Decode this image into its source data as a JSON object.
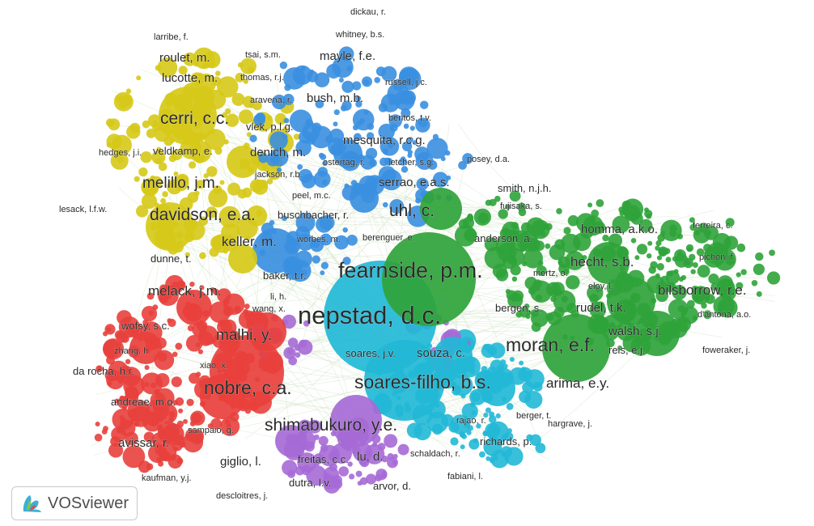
{
  "app": {
    "brand": "VOSviewer",
    "logo_icon": "vosviewer-logo-icon"
  },
  "network": {
    "visualization": "co-authorship network",
    "clusters": [
      {
        "id": "yellow",
        "color": "#d6c918"
      },
      {
        "id": "blue",
        "color": "#3a8fe0"
      },
      {
        "id": "green",
        "color": "#2fa33a"
      },
      {
        "id": "red",
        "color": "#e8403c"
      },
      {
        "id": "cyan",
        "color": "#22b8d6"
      },
      {
        "id": "purple",
        "color": "#a66ad6"
      }
    ],
    "link_color": "#cfe3c4",
    "labels": [
      {
        "text": "dickau, r.",
        "cluster": "blue"
      },
      {
        "text": "whitney, b.s.",
        "cluster": "blue"
      },
      {
        "text": "larribe, f.",
        "cluster": "yellow"
      },
      {
        "text": "roulet, m.",
        "cluster": "yellow"
      },
      {
        "text": "tsai, s.m.",
        "cluster": "yellow"
      },
      {
        "text": "mayle, f.e.",
        "cluster": "blue"
      },
      {
        "text": "lucotte, m.",
        "cluster": "yellow"
      },
      {
        "text": "thomas, r.j.",
        "cluster": "yellow"
      },
      {
        "text": "russell, j.c.",
        "cluster": "blue"
      },
      {
        "text": "bush, m.b.",
        "cluster": "blue"
      },
      {
        "text": "aravena, r.",
        "cluster": "yellow"
      },
      {
        "text": "cerri, c.c.",
        "cluster": "yellow"
      },
      {
        "text": "bentos, t.v.",
        "cluster": "blue"
      },
      {
        "text": "vlek, p.l.g.",
        "cluster": "yellow"
      },
      {
        "text": "mesquita, r.c.g.",
        "cluster": "blue"
      },
      {
        "text": "hedges, j.i.",
        "cluster": "yellow"
      },
      {
        "text": "veldkamp, e.",
        "cluster": "yellow"
      },
      {
        "text": "denich, m.",
        "cluster": "yellow"
      },
      {
        "text": "ostertag, r.",
        "cluster": "blue"
      },
      {
        "text": "letcher, s.g.",
        "cluster": "blue"
      },
      {
        "text": "posey, d.a.",
        "cluster": "blue"
      },
      {
        "text": "jackson, r.b.",
        "cluster": "yellow"
      },
      {
        "text": "melillo, j.m.",
        "cluster": "yellow"
      },
      {
        "text": "serrao, e.a.s.",
        "cluster": "blue"
      },
      {
        "text": "smith, n.j.h.",
        "cluster": "green"
      },
      {
        "text": "peel, m.c.",
        "cluster": "blue"
      },
      {
        "text": "fujisaka, s.",
        "cluster": "green"
      },
      {
        "text": "lesack, l.f.w.",
        "cluster": "yellow"
      },
      {
        "text": "davidson, e.a.",
        "cluster": "yellow"
      },
      {
        "text": "buschbacher, r.",
        "cluster": "blue"
      },
      {
        "text": "uhl, c.",
        "cluster": "green"
      },
      {
        "text": "ferreira, c.",
        "cluster": "green"
      },
      {
        "text": "homma, a.k.o.",
        "cluster": "green"
      },
      {
        "text": "berenguer, e.",
        "cluster": "blue"
      },
      {
        "text": "keller, m.",
        "cluster": "yellow"
      },
      {
        "text": "worbes, m.",
        "cluster": "blue"
      },
      {
        "text": "anderson, a.",
        "cluster": "green"
      },
      {
        "text": "pichon, f.",
        "cluster": "green"
      },
      {
        "text": "dunne, t.",
        "cluster": "yellow"
      },
      {
        "text": "hecht, s.b.",
        "cluster": "green"
      },
      {
        "text": "fearnside, p.m.",
        "cluster": "green"
      },
      {
        "text": "mertz, o.",
        "cluster": "green"
      },
      {
        "text": "baker, t.r.",
        "cluster": "blue"
      },
      {
        "text": "eloy, l.",
        "cluster": "green"
      },
      {
        "text": "melack, j.m.",
        "cluster": "red"
      },
      {
        "text": "bilsborrow, r.e.",
        "cluster": "green"
      },
      {
        "text": "li, h.",
        "cluster": "purple"
      },
      {
        "text": "wang, x.",
        "cluster": "red"
      },
      {
        "text": "bergen, s.",
        "cluster": "green"
      },
      {
        "text": "rudel, t.k.",
        "cluster": "green"
      },
      {
        "text": "d'antona, a.o.",
        "cluster": "green"
      },
      {
        "text": "nepstad, d.c.",
        "cluster": "cyan"
      },
      {
        "text": "wofsy, s.c.",
        "cluster": "red"
      },
      {
        "text": "walsh, s.j.",
        "cluster": "green"
      },
      {
        "text": "malhi, y.",
        "cluster": "red"
      },
      {
        "text": "zhang, h.",
        "cluster": "red"
      },
      {
        "text": "reis, e.j.",
        "cluster": "green"
      },
      {
        "text": "soares, j.v.",
        "cluster": "purple"
      },
      {
        "text": "souza, c.",
        "cluster": "cyan"
      },
      {
        "text": "moran, e.f.",
        "cluster": "green"
      },
      {
        "text": "foweraker, j.",
        "cluster": "green"
      },
      {
        "text": "xiao, x.",
        "cluster": "red"
      },
      {
        "text": "da rocha, h.r.",
        "cluster": "red"
      },
      {
        "text": "soares-filho, b.s.",
        "cluster": "cyan"
      },
      {
        "text": "arima, e.y.",
        "cluster": "green"
      },
      {
        "text": "nobre, c.a.",
        "cluster": "red"
      },
      {
        "text": "andreae, m.o.",
        "cluster": "red"
      },
      {
        "text": "berger, t.",
        "cluster": "cyan"
      },
      {
        "text": "sampaio, g.",
        "cluster": "red"
      },
      {
        "text": "shimabukuro, y.e.",
        "cluster": "purple"
      },
      {
        "text": "rajao, r.",
        "cluster": "cyan"
      },
      {
        "text": "hargrave, j.",
        "cluster": "cyan"
      },
      {
        "text": "avissar, r.",
        "cluster": "red"
      },
      {
        "text": "richards, p.",
        "cluster": "cyan"
      },
      {
        "text": "giglio, l.",
        "cluster": "red"
      },
      {
        "text": "freitas, c.c.",
        "cluster": "purple"
      },
      {
        "text": "lu, d.",
        "cluster": "purple"
      },
      {
        "text": "schaldach, r.",
        "cluster": "cyan"
      },
      {
        "text": "kaufman, y.j.",
        "cluster": "red"
      },
      {
        "text": "fabiani, l.",
        "cluster": "cyan"
      },
      {
        "text": "dutra, l.v.",
        "cluster": "purple"
      },
      {
        "text": "arvor, d.",
        "cluster": "purple"
      },
      {
        "text": "descloitres, j.",
        "cluster": "red"
      }
    ]
  }
}
